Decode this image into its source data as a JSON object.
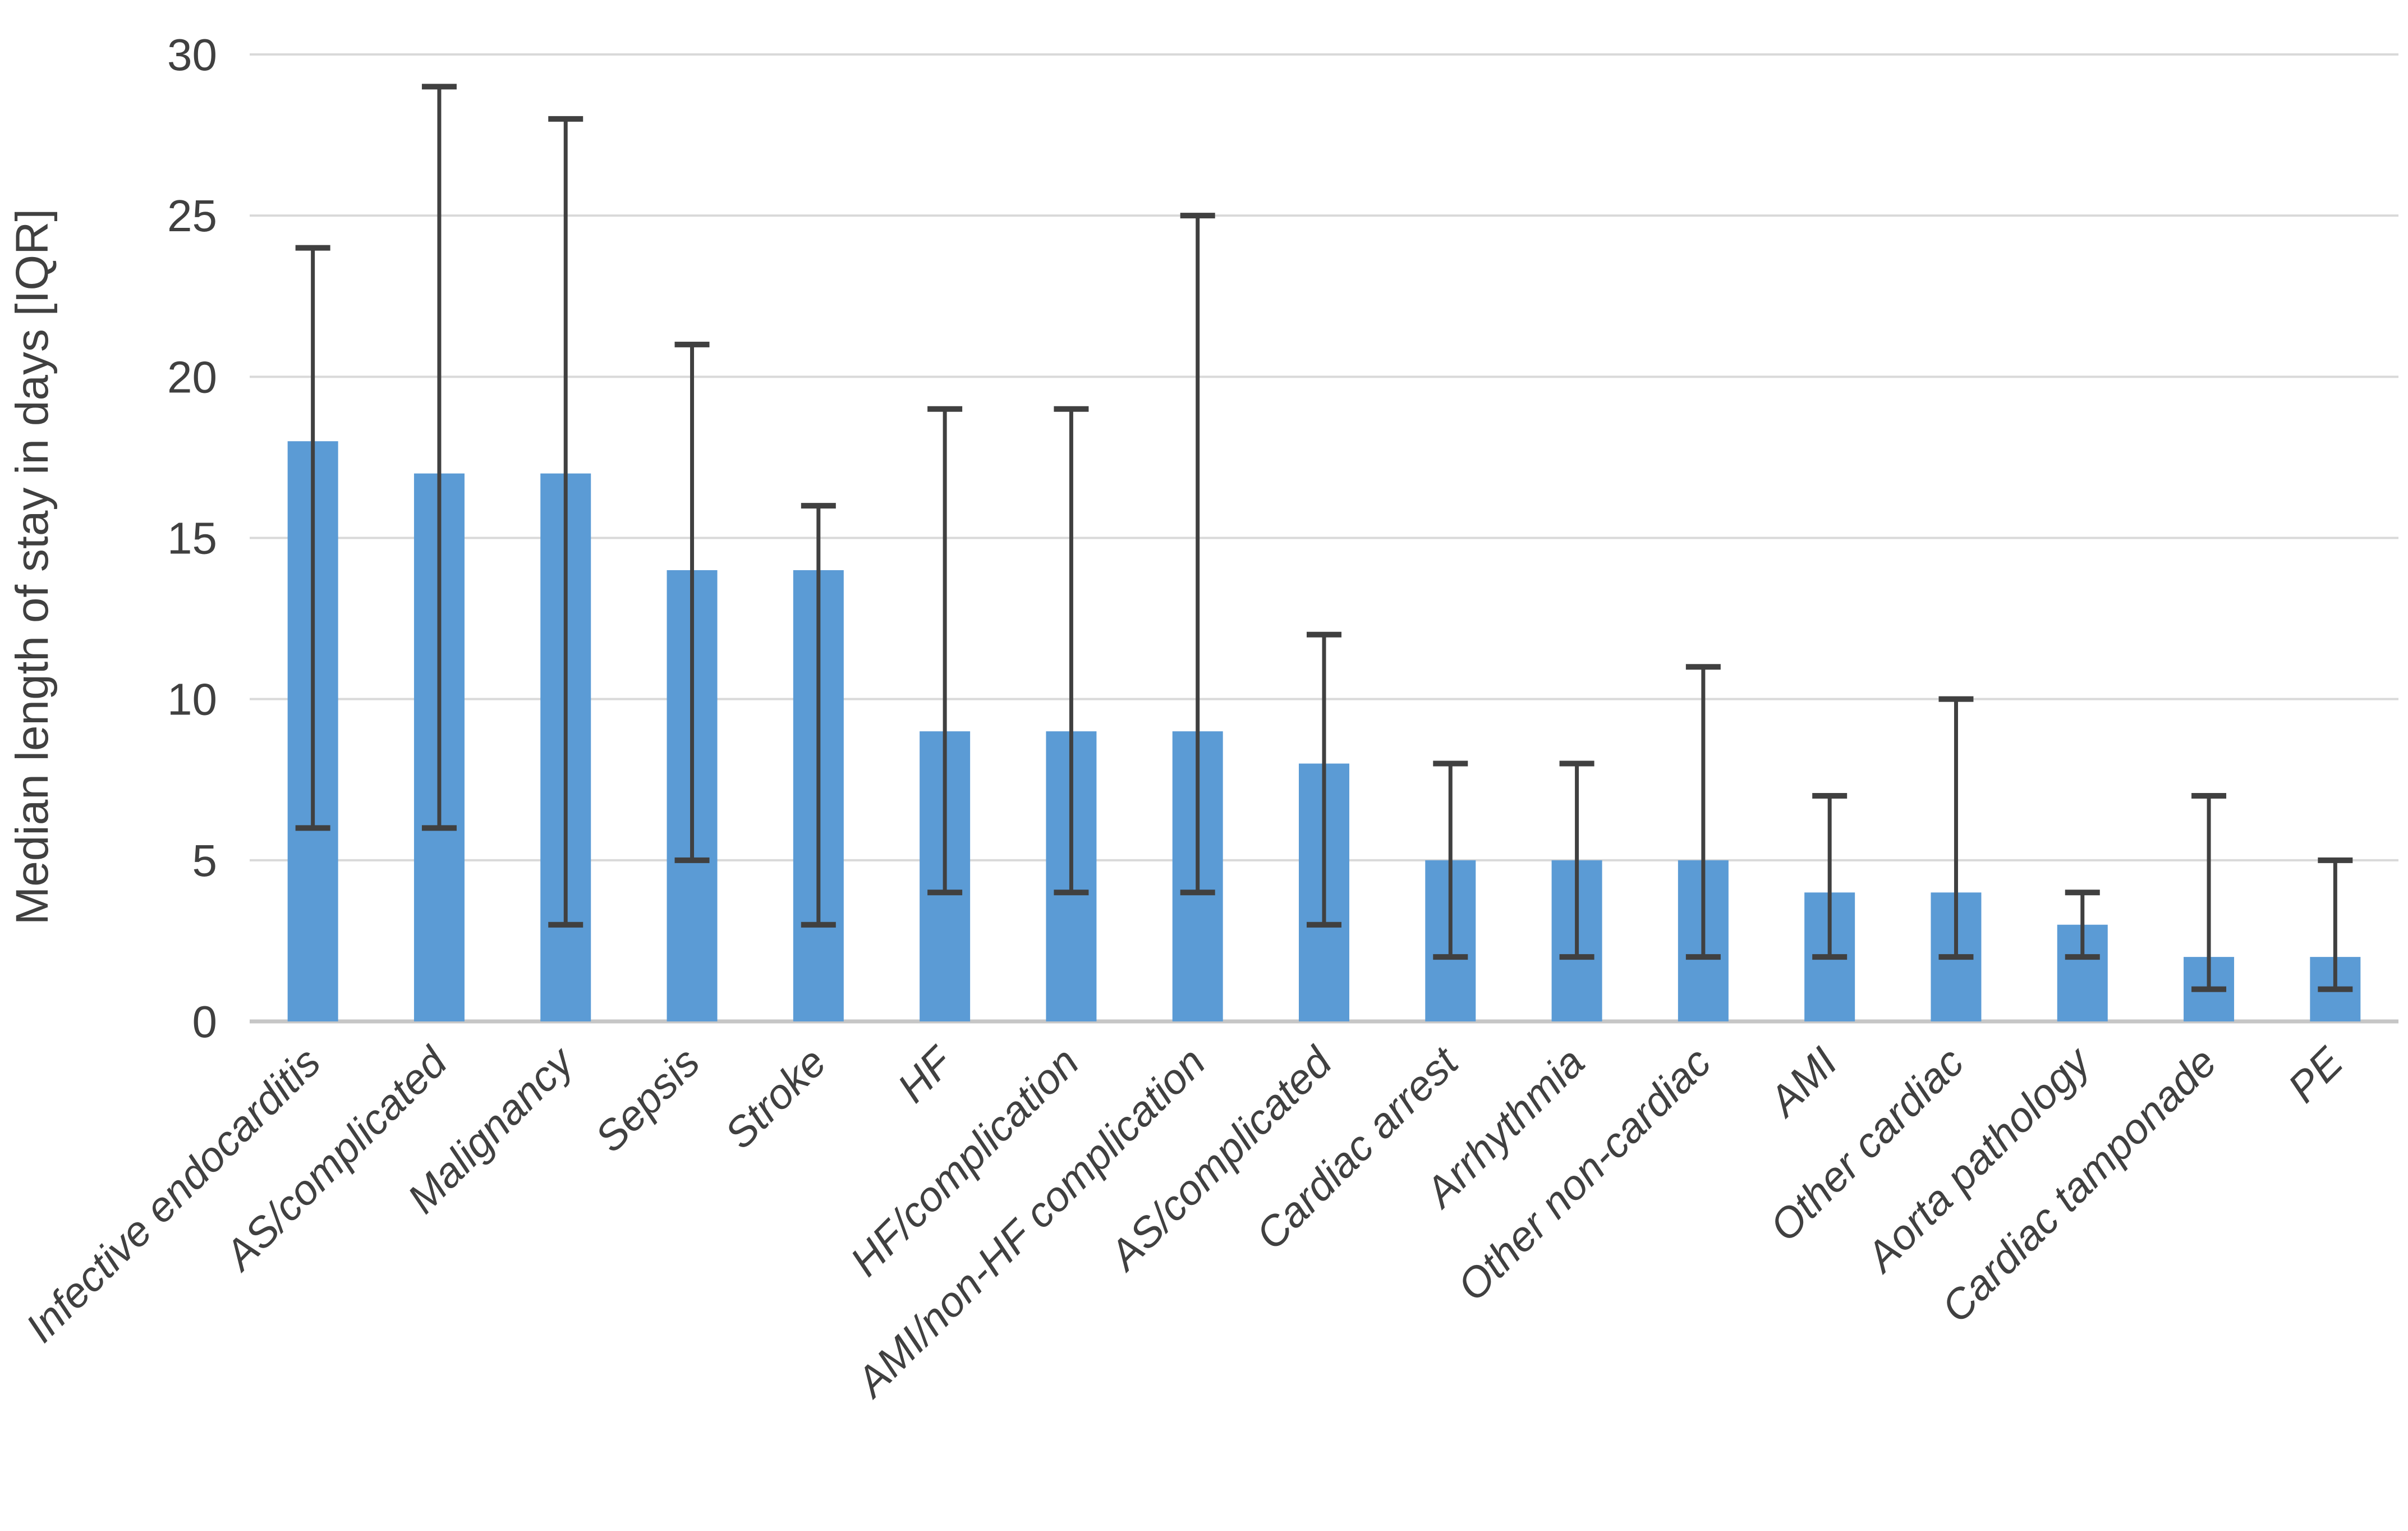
{
  "chart_data": {
    "type": "bar",
    "title": "",
    "xlabel": "",
    "ylabel": "Median length of stay in days [IQR]",
    "ylim": [
      0,
      30
    ],
    "yticks": [
      0,
      5,
      10,
      15,
      20,
      25,
      30
    ],
    "grid": true,
    "legend": false,
    "categories": [
      "Infective endocarditis",
      "AS/complicated",
      "Malignancy",
      "Sepsis",
      "Stroke",
      "HF",
      "HF/complication",
      "AMI/non-HF complication",
      "AS/complicated",
      "Cardiac arrest",
      "Arrhythmia",
      "Other non-cardiac",
      "AMI",
      "Other cardiac",
      "Aorta pathology",
      "Cardiac tamponade",
      "PE"
    ],
    "series": [
      {
        "name": "Median length of stay in days",
        "values": [
          18,
          17,
          17,
          14,
          14,
          9,
          9,
          9,
          8,
          5,
          5,
          5,
          4,
          4,
          3,
          2,
          2
        ]
      }
    ],
    "error_bars": {
      "low": [
        6,
        6,
        3,
        5,
        3,
        4,
        4,
        4,
        3,
        2,
        2,
        2,
        2,
        2,
        2,
        1,
        1
      ],
      "high": [
        24,
        29,
        28,
        21,
        16,
        19,
        19,
        25,
        12,
        8,
        8,
        11,
        7,
        10,
        4,
        7,
        5
      ]
    },
    "colors": {
      "bar": "#5B9BD5",
      "error_bar": "#404040",
      "gridline": "#D9D9D9",
      "axis_line": "#C6C6C6",
      "text": "#404040",
      "background": "#FFFFFF"
    }
  }
}
